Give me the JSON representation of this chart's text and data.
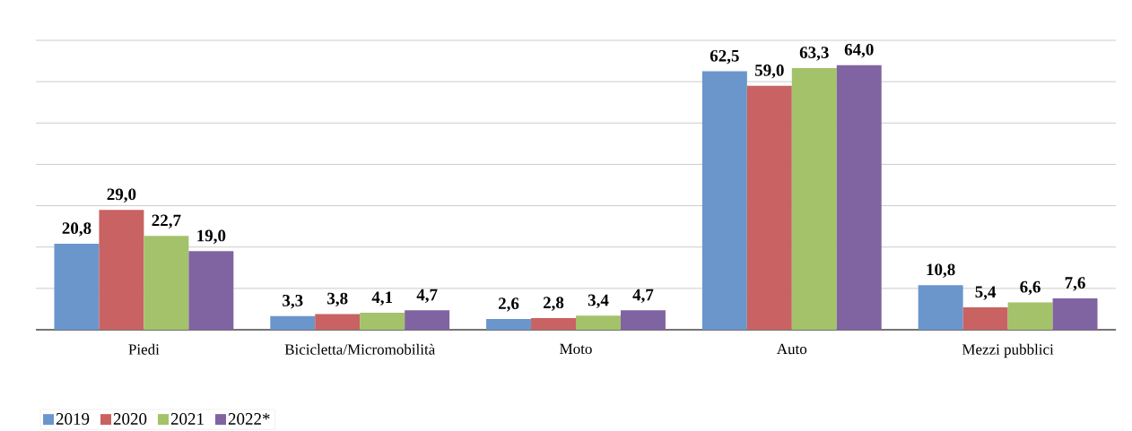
{
  "chart_data": {
    "type": "bar",
    "categories": [
      "Piedi",
      "Bicicletta/Micromobilità",
      "Moto",
      "Auto",
      "Mezzi pubblici"
    ],
    "series": [
      {
        "name": "2019",
        "color": "#6a96cc",
        "values": [
          20.8,
          3.3,
          2.6,
          62.5,
          10.8
        ],
        "value_labels": [
          "20,8",
          "3,3",
          "2,6",
          "62,5",
          "10,8"
        ]
      },
      {
        "name": "2020",
        "color": "#c96262",
        "values": [
          29.0,
          3.8,
          2.8,
          59.0,
          5.4
        ],
        "value_labels": [
          "29,0",
          "3,8",
          "2,8",
          "59,0",
          "5,4"
        ]
      },
      {
        "name": "2021",
        "color": "#a3c26a",
        "values": [
          22.7,
          4.1,
          3.4,
          63.3,
          6.6
        ],
        "value_labels": [
          "22,7",
          "4,1",
          "3,4",
          "63,3",
          "6,6"
        ]
      },
      {
        "name": "2022*",
        "color": "#8064a2",
        "values": [
          19.0,
          4.7,
          4.7,
          64.0,
          7.6
        ],
        "value_labels": [
          "19,0",
          "4,7",
          "4,7",
          "64,0",
          "7,6"
        ]
      }
    ],
    "ylim": [
      0,
      70
    ],
    "yticks": [
      {
        "value": 0,
        "label": null
      },
      {
        "value": 10,
        "label": null
      },
      {
        "value": 20,
        "label": null
      },
      {
        "value": 30,
        "label": null
      },
      {
        "value": 40,
        "label": null
      },
      {
        "value": 50,
        "label": null
      },
      {
        "value": 60,
        "label": null
      },
      {
        "value": 70,
        "label": null
      }
    ],
    "tick_labels": "x",
    "grid": "y",
    "legend": "bottom left"
  }
}
